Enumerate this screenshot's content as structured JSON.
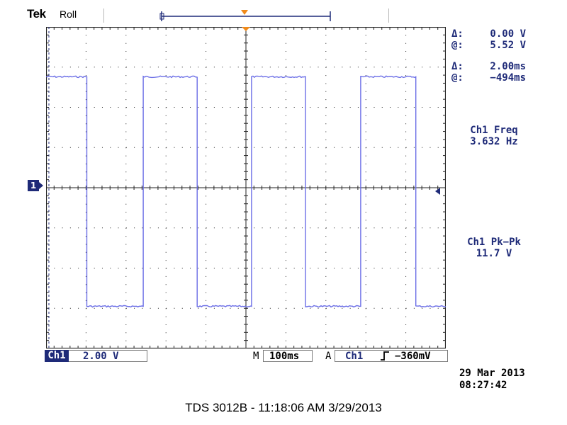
{
  "header": {
    "brand": "Tek",
    "acquisition_mode": "Roll"
  },
  "channel_marker": "1",
  "cursor_readouts": [
    {
      "label": "Δ:",
      "value": "0.00 V"
    },
    {
      "label": "@:",
      "value": "5.52 V"
    },
    {
      "label": "Δ:",
      "value": "2.00ms"
    },
    {
      "label": "@:",
      "value": "−494ms"
    }
  ],
  "measurements": [
    {
      "title": "Ch1 Freq",
      "value": "3.632 Hz"
    },
    {
      "title": "Ch1 Pk−Pk",
      "value": "11.7 V"
    }
  ],
  "status_bar": {
    "channel": "Ch1",
    "volts_per_div": "2.00 V",
    "timebase_label": "M",
    "timebase": "100ms",
    "trigger_label": "A",
    "trigger_source": "Ch1",
    "trigger_level": "−360mV"
  },
  "timestamp": {
    "date": "29 Mar 2013",
    "time": "08:27:42"
  },
  "footer": "TDS 3012B - 11:18:06 AM   3/29/2013",
  "colors": {
    "trace": "#6b6ee6",
    "readout": "#1e2a78",
    "trigger_marker": "#f08a1a",
    "grid": "#222222"
  },
  "waveform": {
    "type": "square",
    "high_volts": 5.52,
    "low_volts": -5.9,
    "volts_per_div": 2.0,
    "time_per_div_ms": 100,
    "divisions_x": 10,
    "divisions_y": 8,
    "transitions_div": [
      1.02,
      2.43,
      3.78,
      5.14,
      6.49,
      7.87,
      9.25
    ],
    "starts_high": true
  }
}
